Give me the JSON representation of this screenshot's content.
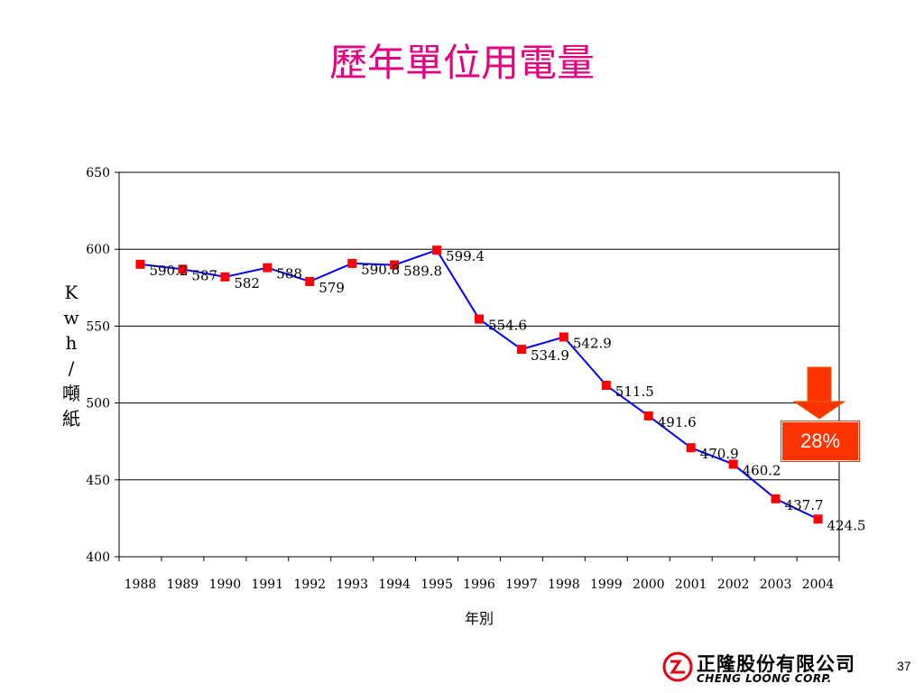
{
  "page": {
    "title": "歷年單位用電量",
    "callout": "28%",
    "page_number": "37",
    "logo": {
      "zh": "正隆股份有限公司",
      "en": "CHENG LOONG CORP."
    }
  },
  "colors": {
    "title": "#e4007f",
    "line": "#0000ff",
    "marker": "#ff0000",
    "callout": "#ff3300"
  },
  "icons": {
    "trend": "down-arrow-icon",
    "logo": "cheng-loong-logo-icon"
  },
  "chart_data": {
    "type": "line",
    "title": "歷年單位用電量",
    "xlabel": "年別",
    "ylabel": "Kwh/噸紙",
    "ylabel_chars": [
      "K",
      "w",
      "h",
      "/",
      "噸",
      "紙"
    ],
    "ylim": [
      400,
      650
    ],
    "yticks": [
      400,
      450,
      500,
      550,
      600,
      650
    ],
    "grid": true,
    "categories": [
      "1988",
      "1989",
      "1990",
      "1991",
      "1992",
      "1993",
      "1994",
      "1995",
      "1996",
      "1997",
      "1998",
      "1999",
      "2000",
      "2001",
      "2002",
      "2003",
      "2004"
    ],
    "series": [
      {
        "values": [
          590.2,
          587,
          582,
          588,
          579,
          590.8,
          589.8,
          599.4,
          554.6,
          534.9,
          542.9,
          511.5,
          491.6,
          470.9,
          460.2,
          437.7,
          424.5
        ],
        "labels": [
          "590.2",
          "587",
          "582",
          "588",
          "579",
          "590.8",
          "589.8",
          "599.4",
          "554.6",
          "534.9",
          "542.9",
          "511.5",
          "491.6",
          "470.9",
          "460.2",
          "437.7",
          "424.5"
        ]
      }
    ]
  }
}
